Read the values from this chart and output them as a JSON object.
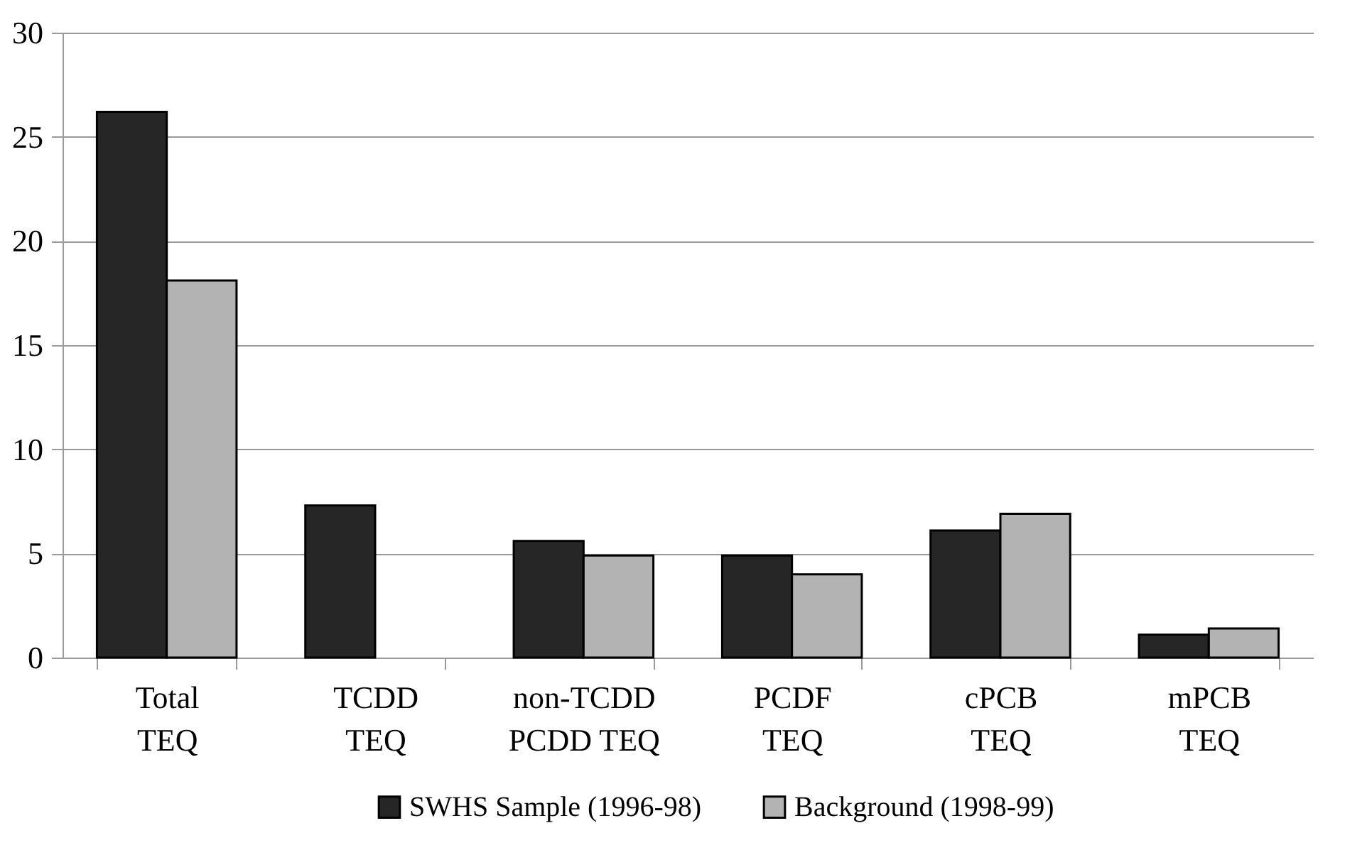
{
  "chart_data": {
    "type": "bar",
    "categories": [
      "Total\nTEQ",
      "TCDD\nTEQ",
      "non-TCDD\nPCDD TEQ",
      "PCDF\nTEQ",
      "cPCB\nTEQ",
      "mPCB\nTEQ"
    ],
    "series": [
      {
        "name": "SWHS Sample (1996-98)",
        "color": "#262626",
        "values": [
          26.2,
          7.3,
          5.6,
          4.9,
          6.1,
          1.1
        ]
      },
      {
        "name": "Background (1998-99)",
        "color": "#b3b3b3",
        "values": [
          18.1,
          null,
          4.9,
          4.0,
          6.9,
          1.4
        ]
      }
    ],
    "ylim": [
      0,
      30
    ],
    "yticks": [
      0,
      5,
      10,
      15,
      20,
      25,
      30
    ],
    "grid": "y",
    "legend": "bottom"
  }
}
